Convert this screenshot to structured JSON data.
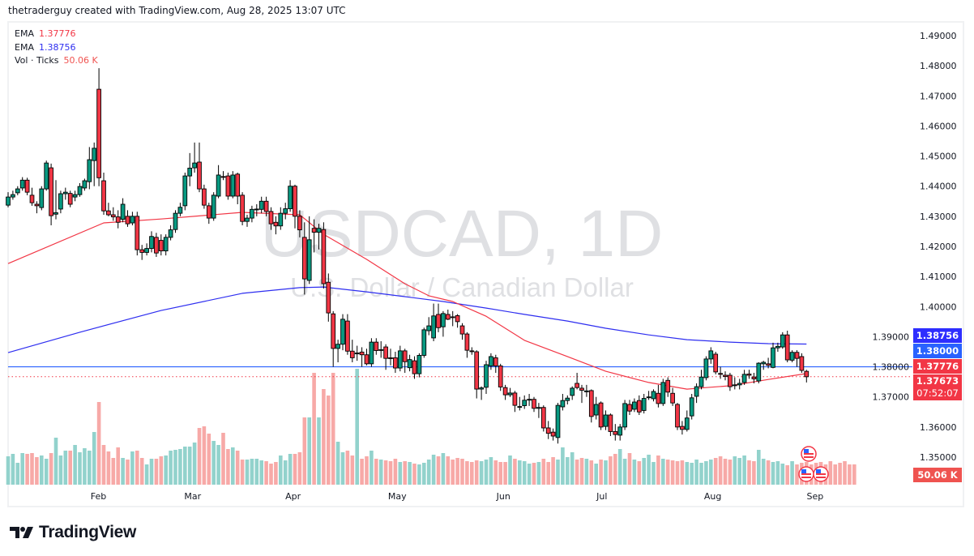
{
  "credit": "thetraderguy created with TradingView.com, Aug 28, 2025 13:07 UTC",
  "legend": [
    {
      "label": "EMA",
      "value": "1.37776",
      "color": "#f23645"
    },
    {
      "label": "EMA",
      "value": "1.38756",
      "color": "#2e2ef0"
    },
    {
      "label": "Vol · Ticks",
      "value": "50.06 K",
      "color": "#f05350"
    }
  ],
  "watermark": {
    "symbol": "USDCAD, 1D",
    "description": "U.S. Dollar / Canadian Dollar"
  },
  "logo": {
    "text": "TradingView"
  },
  "price_tags": [
    {
      "value": "1.38756",
      "color": "#2e2eff"
    },
    {
      "value": "1.38000",
      "color": "#2962ff"
    },
    {
      "value": "1.37776",
      "color": "#f23645"
    },
    {
      "value": "1.37673",
      "countdown": "07:52:07",
      "color": "#f23645"
    },
    {
      "value": "50.06 K",
      "color": "#ef5350"
    }
  ],
  "colors": {
    "up": "#089981",
    "down": "#f23645",
    "vol_up": "#92d2cc",
    "vol_down": "#f7a9a7",
    "ema_fast": "#f23645",
    "ema_slow": "#2e2ef0",
    "hline": "#2962ff"
  },
  "event_icons": [
    "us-flag-icon",
    "us-flag-icon",
    "us-flag-icon"
  ],
  "chart_data": {
    "type": "candlestick",
    "symbol": "USDCAD",
    "interval": "1D",
    "y_axis": {
      "ticks": [
        "1.35000",
        "1.36000",
        "1.37000",
        "1.38000",
        "1.39000",
        "1.40000",
        "1.41000",
        "1.42000",
        "1.43000",
        "1.44000",
        "1.45000",
        "1.46000",
        "1.47000",
        "1.48000",
        "1.49000"
      ],
      "range": [
        1.345,
        1.495
      ]
    },
    "x_axis": {
      "labels": [
        {
          "label": "Feb",
          "index": 18.9
        },
        {
          "label": "Mar",
          "index": 38.6
        },
        {
          "label": "Apr",
          "index": 59.6
        },
        {
          "label": "May",
          "index": 81.4
        },
        {
          "label": "Jun",
          "index": 103.6
        },
        {
          "label": "Jul",
          "index": 124.2
        },
        {
          "label": "Aug",
          "index": 147.4
        },
        {
          "label": "Sep",
          "index": 168.8
        }
      ]
    },
    "horizontal_line": 1.38,
    "last_price_line": 1.37673,
    "ohlc": [
      [
        1.4337,
        1.438,
        1.433,
        1.4364
      ],
      [
        1.4364,
        1.4385,
        1.4355,
        1.4372
      ],
      [
        1.4378,
        1.44,
        1.437,
        1.4391
      ],
      [
        1.4394,
        1.443,
        1.4385,
        1.442
      ],
      [
        1.442,
        1.4428,
        1.437,
        1.438
      ],
      [
        1.437,
        1.4395,
        1.4335,
        1.4345
      ],
      [
        1.434,
        1.435,
        1.431,
        1.4335
      ],
      [
        1.4329,
        1.44,
        1.432,
        1.4391
      ],
      [
        1.4391,
        1.4485,
        1.4385,
        1.4477
      ],
      [
        1.4461,
        1.4475,
        1.427,
        1.4302
      ],
      [
        1.4307,
        1.442,
        1.429,
        1.4312
      ],
      [
        1.4324,
        1.4385,
        1.431,
        1.4375
      ],
      [
        1.4375,
        1.4395,
        1.4355,
        1.438
      ],
      [
        1.4376,
        1.4385,
        1.433,
        1.434
      ],
      [
        1.4364,
        1.4385,
        1.435,
        1.4372
      ],
      [
        1.4372,
        1.441,
        1.4365,
        1.4399
      ],
      [
        1.4394,
        1.4425,
        1.4385,
        1.4418
      ],
      [
        1.4415,
        1.453,
        1.439,
        1.4488
      ],
      [
        1.4485,
        1.4545,
        1.44,
        1.4526
      ],
      [
        1.4722,
        1.4792,
        1.44,
        1.4428
      ],
      [
        1.4418,
        1.4445,
        1.4305,
        1.4318
      ],
      [
        1.4318,
        1.4345,
        1.43,
        1.4305
      ],
      [
        1.4305,
        1.433,
        1.4285,
        1.4298
      ],
      [
        1.4298,
        1.432,
        1.426,
        1.428
      ],
      [
        1.429,
        1.436,
        1.428,
        1.434
      ],
      [
        1.43,
        1.432,
        1.4265,
        1.4275
      ],
      [
        1.4278,
        1.4315,
        1.427,
        1.43
      ],
      [
        1.43,
        1.4315,
        1.417,
        1.4189
      ],
      [
        1.4189,
        1.4205,
        1.4155,
        1.418
      ],
      [
        1.418,
        1.421,
        1.417,
        1.4193
      ],
      [
        1.4193,
        1.425,
        1.418,
        1.4233
      ],
      [
        1.423,
        1.4245,
        1.4165,
        1.4178
      ],
      [
        1.422,
        1.424,
        1.417,
        1.4185
      ],
      [
        1.4185,
        1.424,
        1.417,
        1.423
      ],
      [
        1.423,
        1.427,
        1.422,
        1.4255
      ],
      [
        1.4256,
        1.432,
        1.4245,
        1.431
      ],
      [
        1.431,
        1.4345,
        1.43,
        1.433
      ],
      [
        1.4335,
        1.4445,
        1.432,
        1.4434
      ],
      [
        1.4434,
        1.451,
        1.44,
        1.446
      ],
      [
        1.4461,
        1.4545,
        1.4445,
        1.4477
      ],
      [
        1.448,
        1.4545,
        1.438,
        1.4391
      ],
      [
        1.4391,
        1.4405,
        1.4325,
        1.4337
      ],
      [
        1.4335,
        1.4345,
        1.4275,
        1.4294
      ],
      [
        1.4294,
        1.438,
        1.4285,
        1.437
      ],
      [
        1.4367,
        1.447,
        1.436,
        1.4437
      ],
      [
        1.4432,
        1.445,
        1.442,
        1.443
      ],
      [
        1.4434,
        1.4445,
        1.4355,
        1.4367
      ],
      [
        1.4367,
        1.445,
        1.436,
        1.4437
      ],
      [
        1.444,
        1.4445,
        1.434,
        1.4367
      ],
      [
        1.437,
        1.438,
        1.427,
        1.4283
      ],
      [
        1.4283,
        1.4305,
        1.4265,
        1.4294
      ],
      [
        1.4294,
        1.4335,
        1.428,
        1.4323
      ],
      [
        1.4323,
        1.434,
        1.43,
        1.4324
      ],
      [
        1.4323,
        1.4365,
        1.431,
        1.435
      ],
      [
        1.435,
        1.4365,
        1.43,
        1.4316
      ],
      [
        1.4316,
        1.433,
        1.4255,
        1.4275
      ],
      [
        1.428,
        1.43,
        1.424,
        1.4268
      ],
      [
        1.4268,
        1.433,
        1.4255,
        1.431
      ],
      [
        1.431,
        1.4345,
        1.429,
        1.4325
      ],
      [
        1.4325,
        1.442,
        1.4315,
        1.44
      ],
      [
        1.44,
        1.4405,
        1.426,
        1.43
      ],
      [
        1.43,
        1.432,
        1.423,
        1.4255
      ],
      [
        1.423,
        1.428,
        1.404,
        1.4092
      ],
      [
        1.4087,
        1.43,
        1.4075,
        1.4222
      ],
      [
        1.426,
        1.429,
        1.418,
        1.4247
      ],
      [
        1.4247,
        1.4275,
        1.419,
        1.426
      ],
      [
        1.4256,
        1.428,
        1.406,
        1.4076
      ],
      [
        1.4081,
        1.411,
        1.395,
        1.3979
      ],
      [
        1.3976,
        1.3985,
        1.38,
        1.3861
      ],
      [
        1.3861,
        1.389,
        1.3815,
        1.3875
      ],
      [
        1.3875,
        1.3975,
        1.3855,
        1.3958
      ],
      [
        1.3952,
        1.3975,
        1.384,
        1.3852
      ],
      [
        1.3852,
        1.389,
        1.3815,
        1.383
      ],
      [
        1.3843,
        1.387,
        1.382,
        1.3846
      ],
      [
        1.3849,
        1.3865,
        1.38,
        1.384
      ],
      [
        1.384,
        1.386,
        1.3805,
        1.381
      ],
      [
        1.381,
        1.3895,
        1.38,
        1.3882
      ],
      [
        1.3882,
        1.3895,
        1.384,
        1.3854
      ],
      [
        1.3855,
        1.3885,
        1.383,
        1.3857
      ],
      [
        1.3866,
        1.3875,
        1.379,
        1.3828
      ],
      [
        1.383,
        1.386,
        1.3805,
        1.3828
      ],
      [
        1.383,
        1.385,
        1.378,
        1.3796
      ],
      [
        1.3796,
        1.387,
        1.3785,
        1.3853
      ],
      [
        1.3853,
        1.386,
        1.378,
        1.3817
      ],
      [
        1.3797,
        1.384,
        1.3785,
        1.3824
      ],
      [
        1.382,
        1.3835,
        1.376,
        1.3777
      ],
      [
        1.3777,
        1.3845,
        1.3765,
        1.3838
      ],
      [
        1.3838,
        1.393,
        1.383,
        1.3923
      ],
      [
        1.392,
        1.3965,
        1.3905,
        1.3936
      ],
      [
        1.3896,
        1.401,
        1.3885,
        1.3969
      ],
      [
        1.3974,
        1.401,
        1.3915,
        1.393
      ],
      [
        1.3933,
        1.3985,
        1.39,
        1.3977
      ],
      [
        1.3974,
        1.399,
        1.3955,
        1.3958
      ],
      [
        1.3966,
        1.3985,
        1.3935,
        1.3965
      ],
      [
        1.397,
        1.3975,
        1.393,
        1.395
      ],
      [
        1.3936,
        1.3945,
        1.389,
        1.3909
      ],
      [
        1.3909,
        1.3915,
        1.383,
        1.3855
      ],
      [
        1.3853,
        1.3865,
        1.384,
        1.3852
      ],
      [
        1.385,
        1.3855,
        1.3695,
        1.3726
      ],
      [
        1.3726,
        1.3735,
        1.369,
        1.373
      ],
      [
        1.3732,
        1.382,
        1.371,
        1.3807
      ],
      [
        1.3803,
        1.3845,
        1.379,
        1.3834
      ],
      [
        1.383,
        1.384,
        1.378,
        1.3803
      ],
      [
        1.3803,
        1.381,
        1.372,
        1.3733
      ],
      [
        1.3731,
        1.374,
        1.369,
        1.3707
      ],
      [
        1.3707,
        1.373,
        1.37,
        1.3713
      ],
      [
        1.3713,
        1.372,
        1.365,
        1.3672
      ],
      [
        1.3668,
        1.37,
        1.3655,
        1.3668
      ],
      [
        1.3671,
        1.3705,
        1.366,
        1.3689
      ],
      [
        1.3692,
        1.371,
        1.367,
        1.3692
      ],
      [
        1.3692,
        1.37,
        1.365,
        1.3662
      ],
      [
        1.3662,
        1.368,
        1.363,
        1.3665
      ],
      [
        1.3665,
        1.3672,
        1.3585,
        1.3597
      ],
      [
        1.3597,
        1.362,
        1.356,
        1.3579
      ],
      [
        1.3583,
        1.3595,
        1.3555,
        1.357
      ],
      [
        1.3565,
        1.368,
        1.3545,
        1.3672
      ],
      [
        1.3667,
        1.371,
        1.3655,
        1.3688
      ],
      [
        1.3688,
        1.3705,
        1.3675,
        1.3696
      ],
      [
        1.3705,
        1.3735,
        1.369,
        1.3729
      ],
      [
        1.3745,
        1.378,
        1.3725,
        1.3731
      ],
      [
        1.3729,
        1.374,
        1.368,
        1.3722
      ],
      [
        1.3717,
        1.374,
        1.37,
        1.372
      ],
      [
        1.3721,
        1.3725,
        1.3615,
        1.3635
      ],
      [
        1.364,
        1.37,
        1.3625,
        1.3675
      ],
      [
        1.368,
        1.3685,
        1.359,
        1.36
      ],
      [
        1.3602,
        1.3655,
        1.359,
        1.364
      ],
      [
        1.364,
        1.3645,
        1.357,
        1.3585
      ],
      [
        1.3585,
        1.361,
        1.3555,
        1.3575
      ],
      [
        1.3573,
        1.361,
        1.3555,
        1.36
      ],
      [
        1.36,
        1.369,
        1.359,
        1.3678
      ],
      [
        1.3675,
        1.369,
        1.364,
        1.3653
      ],
      [
        1.3659,
        1.3695,
        1.365,
        1.3683
      ],
      [
        1.3688,
        1.3705,
        1.364,
        1.365
      ],
      [
        1.3655,
        1.371,
        1.3645,
        1.3695
      ],
      [
        1.37,
        1.372,
        1.369,
        1.37
      ],
      [
        1.3694,
        1.3725,
        1.3685,
        1.3718
      ],
      [
        1.3712,
        1.374,
        1.3665,
        1.3678
      ],
      [
        1.3678,
        1.376,
        1.367,
        1.3748
      ],
      [
        1.3755,
        1.3765,
        1.37,
        1.3716
      ],
      [
        1.3712,
        1.373,
        1.367,
        1.368
      ],
      [
        1.3675,
        1.368,
        1.359,
        1.36
      ],
      [
        1.3602,
        1.362,
        1.3575,
        1.3592
      ],
      [
        1.3592,
        1.3655,
        1.3585,
        1.363
      ],
      [
        1.3637,
        1.371,
        1.3625,
        1.3697
      ],
      [
        1.3702,
        1.3745,
        1.368,
        1.3734
      ],
      [
        1.3734,
        1.379,
        1.3725,
        1.3766
      ],
      [
        1.3764,
        1.3835,
        1.3755,
        1.3826
      ],
      [
        1.3826,
        1.3865,
        1.381,
        1.3853
      ],
      [
        1.3842,
        1.385,
        1.3775,
        1.3783
      ],
      [
        1.3778,
        1.38,
        1.376,
        1.3775
      ],
      [
        1.3772,
        1.3785,
        1.3755,
        1.3768
      ],
      [
        1.3772,
        1.378,
        1.372,
        1.3734
      ],
      [
        1.374,
        1.3765,
        1.3725,
        1.374
      ],
      [
        1.374,
        1.376,
        1.3725,
        1.3745
      ],
      [
        1.3748,
        1.379,
        1.374,
        1.3775
      ],
      [
        1.3776,
        1.379,
        1.376,
        1.3772
      ],
      [
        1.3766,
        1.378,
        1.3745,
        1.376
      ],
      [
        1.3753,
        1.3815,
        1.3745,
        1.3812
      ],
      [
        1.381,
        1.382,
        1.379,
        1.3815
      ],
      [
        1.381,
        1.383,
        1.3795,
        1.3805
      ],
      [
        1.3798,
        1.388,
        1.3795,
        1.3863
      ],
      [
        1.3863,
        1.388,
        1.385,
        1.3868
      ],
      [
        1.3866,
        1.3915,
        1.386,
        1.3906
      ],
      [
        1.3906,
        1.392,
        1.3815,
        1.3823
      ],
      [
        1.3822,
        1.3855,
        1.3815,
        1.3848
      ],
      [
        1.3848,
        1.3855,
        1.38,
        1.3828
      ],
      [
        1.3834,
        1.3845,
        1.378,
        1.3788
      ],
      [
        1.3785,
        1.379,
        1.3748,
        1.3767
      ]
    ],
    "volume_k": [
      70,
      76,
      54,
      78,
      76,
      78,
      68,
      72,
      64,
      78,
      116,
      72,
      84,
      84,
      98,
      80,
      90,
      84,
      130,
      204,
      98,
      82,
      66,
      92,
      66,
      62,
      82,
      84,
      66,
      50,
      64,
      64,
      70,
      72,
      84,
      86,
      88,
      94,
      94,
      104,
      140,
      144,
      126,
      108,
      98,
      128,
      88,
      92,
      84,
      62,
      62,
      64,
      64,
      60,
      58,
      52,
      56,
      72,
      60,
      76,
      76,
      80,
      166,
      166,
      276,
      166,
      236,
      220,
      276,
      106,
      80,
      84,
      72,
      286,
      64,
      70,
      84,
      64,
      62,
      60,
      58,
      64,
      56,
      58,
      56,
      52,
      50,
      54,
      62,
      74,
      70,
      78,
      70,
      62,
      66,
      64,
      58,
      56,
      60,
      58,
      62,
      68,
      60,
      56,
      56,
      72,
      64,
      60,
      58,
      52,
      54,
      56,
      64,
      56,
      68,
      62,
      92,
      68,
      80,
      62,
      66,
      64,
      60,
      52,
      62,
      60,
      70,
      76,
      88,
      64,
      78,
      62,
      58,
      66,
      74,
      56,
      72,
      64,
      62,
      60,
      58,
      60,
      56,
      54,
      62,
      54,
      58,
      62,
      66,
      70,
      64,
      62,
      70,
      66,
      72,
      60,
      58,
      86,
      64,
      60,
      56,
      58,
      52,
      48,
      58,
      50,
      54,
      56,
      50,
      54,
      56,
      50,
      58,
      50,
      54,
      58,
      50,
      50.06
    ],
    "ema_fast": {
      "period_label": "EMA",
      "points": [
        [
          0,
          1.4143
        ],
        [
          20,
          1.4278
        ],
        [
          32,
          1.4291
        ],
        [
          49,
          1.4313
        ],
        [
          61,
          1.4305
        ],
        [
          66,
          1.424
        ],
        [
          75,
          1.4157
        ],
        [
          83,
          1.4076
        ],
        [
          88,
          1.4036
        ],
        [
          93,
          1.4017
        ],
        [
          100,
          1.3968
        ],
        [
          108,
          1.3888
        ],
        [
          117,
          1.3834
        ],
        [
          125,
          1.3785
        ],
        [
          134,
          1.3748
        ],
        [
          142,
          1.3726
        ],
        [
          146,
          1.3731
        ],
        [
          151,
          1.3737
        ],
        [
          159,
          1.3758
        ],
        [
          167,
          1.37776
        ]
      ]
    },
    "ema_slow": {
      "period_label": "EMA",
      "points": [
        [
          0,
          1.3847
        ],
        [
          15,
          1.3915
        ],
        [
          32,
          1.3987
        ],
        [
          49,
          1.4044
        ],
        [
          61,
          1.4063
        ],
        [
          66,
          1.4065
        ],
        [
          75,
          1.4049
        ],
        [
          83,
          1.4033
        ],
        [
          91,
          1.4017
        ],
        [
          100,
          1.3995
        ],
        [
          108,
          1.3974
        ],
        [
          117,
          1.3952
        ],
        [
          125,
          1.3928
        ],
        [
          134,
          1.3906
        ],
        [
          142,
          1.389
        ],
        [
          151,
          1.3882
        ],
        [
          159,
          1.3877
        ],
        [
          167,
          1.38756
        ]
      ]
    }
  }
}
